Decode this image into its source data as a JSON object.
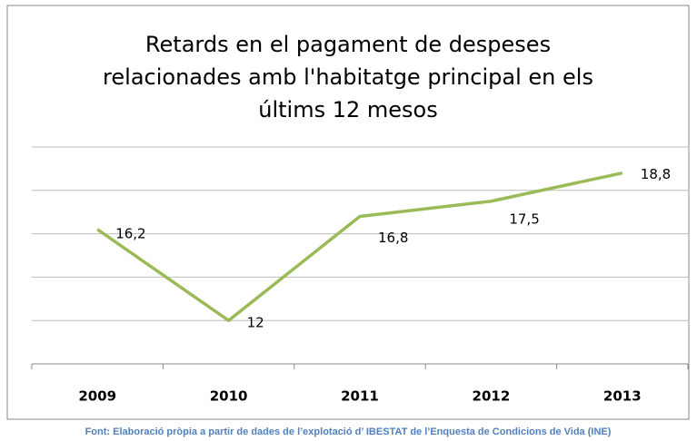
{
  "chart_data": {
    "type": "line",
    "title": [
      "Retards en el pagament de despeses",
      "relacionades amb l'habitatge principal en els",
      "últims 12 mesos"
    ],
    "categories": [
      "2009",
      "2010",
      "2011",
      "2012",
      "2013"
    ],
    "series": [
      {
        "name": "Retards",
        "color": "#9bbb59",
        "values": [
          16.2,
          12,
          16.8,
          17.5,
          18.8
        ],
        "value_labels": [
          "16,2",
          "12",
          "16,8",
          "17,5",
          "18,8"
        ]
      }
    ],
    "ylim": [
      10,
      20
    ],
    "yticks": [
      10,
      12,
      14,
      16,
      18,
      20
    ],
    "grid": true,
    "source": "Font: Elaboració pròpia a partir de dades de l’explotació d’ IBESTAT de l’Enquesta de Condicions de Vida (INE)"
  }
}
